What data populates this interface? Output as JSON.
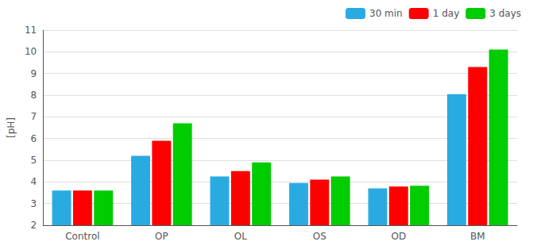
{
  "chart_data": {
    "type": "bar",
    "categories": [
      "Control",
      "OP",
      "OL",
      "OS",
      "OD",
      "BM"
    ],
    "series": [
      {
        "name": "30 min",
        "color": "#29ABE2",
        "values": [
          3.6,
          5.2,
          4.25,
          3.95,
          3.7,
          8.05
        ]
      },
      {
        "name": "1 day",
        "color": "#FF0000",
        "values": [
          3.6,
          5.9,
          4.5,
          4.1,
          3.78,
          9.3
        ]
      },
      {
        "name": "3 days",
        "color": "#00CC00",
        "values": [
          3.6,
          6.7,
          4.9,
          4.25,
          3.82,
          10.1
        ]
      }
    ],
    "ylabel": "[pH]",
    "ylim": [
      2,
      11
    ],
    "yticks": [
      2,
      3,
      4,
      5,
      6,
      7,
      8,
      9,
      10,
      11
    ],
    "grid": true,
    "legend": "upper right"
  }
}
